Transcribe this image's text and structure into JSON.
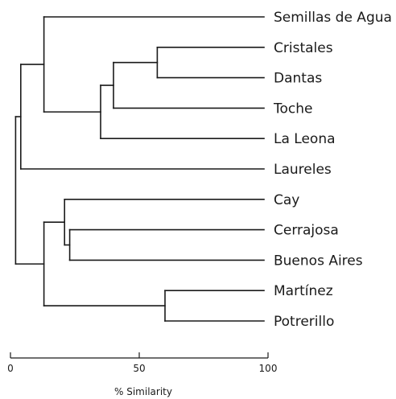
{
  "leaves": [
    "Semillas de Agua",
    "Cristales",
    "Dantas",
    "Toche",
    "La Leona",
    "Laureles",
    "Cay",
    "Cerrajosa",
    "Buenos Aires",
    "Martínez",
    "Potrerillo"
  ],
  "clusters": [
    {
      "children": [
        1,
        2
      ],
      "similarity": 57
    },
    {
      "children": [
        "c0",
        3
      ],
      "similarity": 40
    },
    {
      "children": [
        "c1",
        4
      ],
      "similarity": 35
    },
    {
      "children": [
        0,
        "c2"
      ],
      "similarity": 13
    },
    {
      "children": [
        "c3",
        5
      ],
      "similarity": 4
    },
    {
      "children": [
        7,
        8
      ],
      "similarity": 23
    },
    {
      "children": [
        6,
        "c5"
      ],
      "similarity": 21
    },
    {
      "children": [
        9,
        10
      ],
      "similarity": 60
    },
    {
      "children": [
        "c6",
        "c7"
      ],
      "similarity": 13
    },
    {
      "children": [
        "c4",
        "c8"
      ],
      "similarity": 2
    }
  ],
  "axis": {
    "ticks": [
      0,
      50,
      100
    ],
    "tick_labels": [
      "0",
      "50",
      "100"
    ],
    "range": [
      0,
      100
    ],
    "title": "% Similarity"
  }
}
